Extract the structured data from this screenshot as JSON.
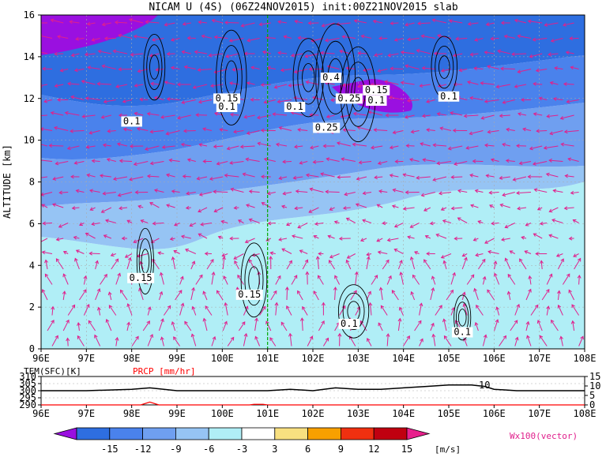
{
  "title": "NICAM U (4S) (06Z24NOV2015) init:00Z21NOV2015 slab",
  "chart_data": [
    {
      "type": "heatmap",
      "panel": "main",
      "ylabel": "ALTITUDE [km]",
      "xlabel": "",
      "x_ticks": [
        "96E",
        "97E",
        "98E",
        "99E",
        "100E",
        "101E",
        "102E",
        "103E",
        "104E",
        "105E",
        "106E",
        "107E",
        "108E"
      ],
      "x_range": [
        96,
        108
      ],
      "y_ticks": [
        "0",
        "2",
        "4",
        "6",
        "8",
        "10",
        "12",
        "14",
        "16"
      ],
      "y_range": [
        0,
        16
      ],
      "grid": true,
      "marker_line_x": 101,
      "contour_labels": [
        {
          "text": "0.15",
          "x": 100.1,
          "y": 11.9
        },
        {
          "text": "0.1",
          "x": 100.1,
          "y": 11.5
        },
        {
          "text": "0.1",
          "x": 98.0,
          "y": 10.8
        },
        {
          "text": "0.1",
          "x": 101.6,
          "y": 11.5
        },
        {
          "text": "0.4",
          "x": 102.4,
          "y": 12.9
        },
        {
          "text": "0.25",
          "x": 102.8,
          "y": 11.9
        },
        {
          "text": "0.15",
          "x": 103.4,
          "y": 12.3
        },
        {
          "text": "0.1",
          "x": 103.4,
          "y": 11.8
        },
        {
          "text": "0.25",
          "x": 102.3,
          "y": 10.5
        },
        {
          "text": "0.1",
          "x": 105.0,
          "y": 12.0
        },
        {
          "text": "0.15",
          "x": 98.2,
          "y": 3.3
        },
        {
          "text": "0.15",
          "x": 100.6,
          "y": 2.5
        },
        {
          "text": "0.1",
          "x": 102.8,
          "y": 1.1
        },
        {
          "text": "0.1",
          "x": 105.3,
          "y": 0.7
        }
      ]
    },
    {
      "type": "line",
      "panel": "surface",
      "series": [
        {
          "name": "TEM(SFC)[K]",
          "color": "#000000",
          "x": [
            96,
            97,
            98,
            98.4,
            99,
            100,
            101,
            101.5,
            102,
            102.5,
            103,
            103.5,
            104,
            104.5,
            105,
            105.5,
            105.8,
            106,
            106.5,
            107,
            108
          ],
          "values": [
            300,
            300,
            301,
            302,
            300,
            300,
            300,
            301,
            300,
            302,
            301,
            301,
            302,
            303,
            304,
            304,
            303,
            301,
            300,
            300,
            300
          ]
        },
        {
          "name": "PRCP [mm/hr]",
          "color": "#ff0000",
          "x": [
            96,
            98.2,
            98.4,
            98.6,
            100.6,
            100.7,
            100.9,
            101,
            108
          ],
          "values": [
            0,
            0,
            1.5,
            0,
            0,
            0.3,
            0.3,
            0,
            0
          ]
        }
      ],
      "left_ticks": [
        "290",
        "295",
        "300",
        "305",
        "310"
      ],
      "left_range": [
        290,
        310
      ],
      "right_ticks": [
        "0",
        "5",
        "10",
        "15"
      ],
      "right_range": [
        0,
        15
      ],
      "x_ticks": [
        "96E",
        "97E",
        "98E",
        "99E",
        "100E",
        "101E",
        "102E",
        "103E",
        "104E",
        "105E",
        "106E",
        "107E",
        "108E"
      ],
      "x_range": [
        96,
        108
      ],
      "annotation": "10"
    }
  ],
  "colorbar": {
    "ticks": [
      "-15",
      "-12",
      "-9",
      "-6",
      "-3",
      "3",
      "6",
      "9",
      "12",
      "15"
    ],
    "unit": "[m/s]",
    "colors": [
      "#9a10e0",
      "#2e6ee0",
      "#4a82ec",
      "#6f9ff0",
      "#96c4f4",
      "#b0eef6",
      "#ffffff",
      "#f8e080",
      "#f8a000",
      "#f03010",
      "#c00010",
      "#e8208c"
    ]
  },
  "vector_label": "Wx100(vector)",
  "colors": {
    "vector": "#e0208c",
    "marker_line": "#00aa00",
    "contour": "#000000"
  }
}
